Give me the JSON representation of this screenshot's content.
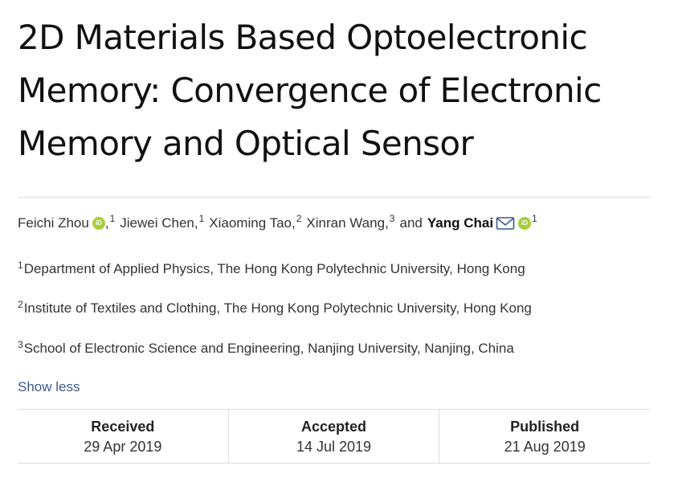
{
  "article": {
    "title_lines": [
      "2D Materials Based Optoelectronic",
      "Memory: Convergence of Electronic",
      "Memory and Optical Sensor"
    ]
  },
  "authors": [
    {
      "name": "Feichi Zhou",
      "orcid": true,
      "affiliation": "1",
      "suffix": ","
    },
    {
      "name": "Jiewei Chen",
      "orcid": false,
      "affiliation": "1",
      "suffix": ","
    },
    {
      "name": "Xiaoming Tao",
      "orcid": false,
      "affiliation": "2",
      "suffix": ","
    },
    {
      "name": "Xinran Wang",
      "orcid": false,
      "affiliation": "3",
      "suffix": ","
    },
    {
      "name": "Yang Chai",
      "orcid": true,
      "affiliation": "1",
      "corresponding": true
    }
  ],
  "authors_conjunction": "and",
  "orcid_badge": "iD",
  "affiliations": [
    {
      "number": "1",
      "text": "Department of Applied Physics, The Hong Kong Polytechnic University, Hong Kong"
    },
    {
      "number": "2",
      "text": "Institute of Textiles and Clothing, The Hong Kong Polytechnic University, Hong Kong"
    },
    {
      "number": "3",
      "text": "School of Electronic Science and Engineering, Nanjing University, Nanjing, China"
    }
  ],
  "toggle_label": "Show less",
  "dates": [
    {
      "label": "Received",
      "value": "29 Apr 2019"
    },
    {
      "label": "Accepted",
      "value": "14 Jul 2019"
    },
    {
      "label": "Published",
      "value": "21 Aug 2019"
    }
  ],
  "colors": {
    "link": "#3a5a8c",
    "orcid": "#a6ce39",
    "divider": "#dddddd"
  }
}
